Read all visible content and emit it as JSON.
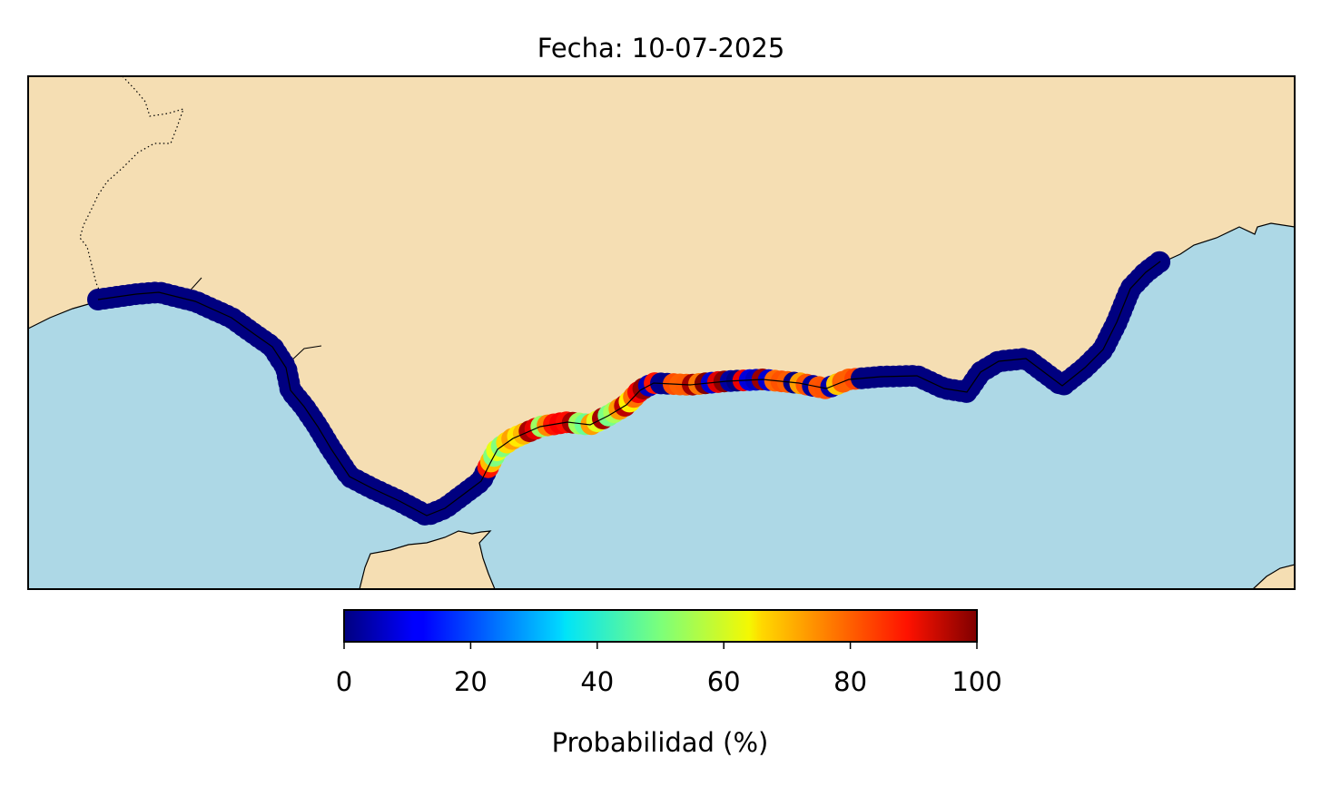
{
  "title": "Fecha: 10-07-2025",
  "colorbar": {
    "label": "Probabilidad (%)",
    "ticks": [
      "0",
      "20",
      "40",
      "60",
      "80",
      "100"
    ],
    "min": 0,
    "max": 100,
    "colormap": "jet"
  },
  "map_style": {
    "land_color": "#f5deb3",
    "sea_color": "#add8e6",
    "coastline_color": "#000000",
    "border_style": "dotted"
  },
  "chart_data": {
    "type": "scatter",
    "title": "Fecha: 10-07-2025",
    "description_of_values": "Probability (%) per coastal point, west to east",
    "segments": [
      {
        "name": "",
        "range": "west coast to strait",
        "probability": 0
      },
      {
        "name": "",
        "range": "strait eastward",
        "probability": 0
      },
      {
        "name": "",
        "range": "central coast",
        "probability_range": [
          40,
          100
        ]
      },
      {
        "name": "",
        "range": "east coast",
        "probability": 0
      }
    ]
  }
}
